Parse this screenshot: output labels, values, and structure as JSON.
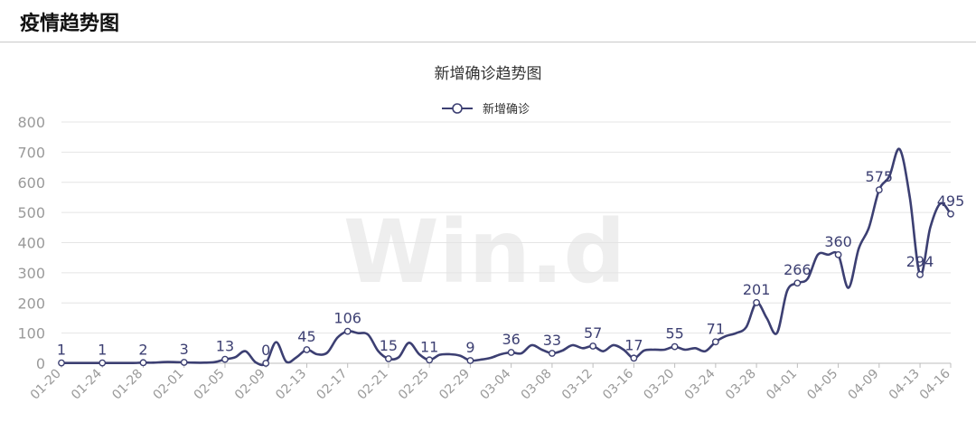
{
  "header": {
    "title": "疫情趋势图"
  },
  "watermark": "Win.d",
  "colors": {
    "line": "#3c3f72",
    "grid": "#e4e4e4",
    "axis": "#bdbdbd",
    "tick": "#9a9a9a"
  },
  "chart_data": {
    "type": "line",
    "title": "新增确诊趋势图",
    "legend": "top-center",
    "grid": true,
    "ylim": [
      0,
      800
    ],
    "yticks": [
      0,
      100,
      200,
      300,
      400,
      500,
      600,
      700,
      800
    ],
    "x_tick_labels": [
      "01-20",
      "01-24",
      "01-28",
      "02-01",
      "02-05",
      "02-09",
      "02-13",
      "02-17",
      "02-21",
      "02-25",
      "02-29",
      "03-04",
      "03-08",
      "03-12",
      "03-16",
      "03-20",
      "03-24",
      "03-28",
      "04-01",
      "04-05",
      "04-09",
      "04-13",
      "04-16"
    ],
    "series": [
      {
        "name": "新增确诊",
        "x": [
          "01-20",
          "01-21",
          "01-22",
          "01-23",
          "01-24",
          "01-25",
          "01-26",
          "01-27",
          "01-28",
          "01-29",
          "01-30",
          "01-31",
          "02-01",
          "02-02",
          "02-03",
          "02-04",
          "02-05",
          "02-06",
          "02-07",
          "02-08",
          "02-09",
          "02-10",
          "02-11",
          "02-12",
          "02-13",
          "02-14",
          "02-15",
          "02-16",
          "02-17",
          "02-18",
          "02-19",
          "02-20",
          "02-21",
          "02-22",
          "02-23",
          "02-24",
          "02-25",
          "02-26",
          "02-27",
          "02-28",
          "02-29",
          "03-01",
          "03-02",
          "03-03",
          "03-04",
          "03-05",
          "03-06",
          "03-07",
          "03-08",
          "03-09",
          "03-10",
          "03-11",
          "03-12",
          "03-13",
          "03-14",
          "03-15",
          "03-16",
          "03-17",
          "03-18",
          "03-19",
          "03-20",
          "03-21",
          "03-22",
          "03-23",
          "03-24",
          "03-25",
          "03-26",
          "03-27",
          "03-28",
          "03-29",
          "03-30",
          "03-31",
          "04-01",
          "04-02",
          "04-03",
          "04-04",
          "04-05",
          "04-06",
          "04-07",
          "04-08",
          "04-09",
          "04-10",
          "04-11",
          "04-12",
          "04-13",
          "04-14",
          "04-15",
          "04-16"
        ],
        "values": [
          1,
          1,
          1,
          1,
          1,
          1,
          1,
          1,
          2,
          2,
          4,
          4,
          3,
          2,
          2,
          4,
          13,
          20,
          40,
          3,
          0,
          70,
          5,
          20,
          45,
          30,
          35,
          85,
          106,
          100,
          95,
          40,
          15,
          20,
          68,
          30,
          11,
          28,
          30,
          25,
          9,
          12,
          18,
          30,
          36,
          33,
          60,
          45,
          33,
          42,
          60,
          50,
          57,
          40,
          60,
          45,
          17,
          42,
          45,
          45,
          55,
          45,
          50,
          40,
          71,
          90,
          100,
          120,
          201,
          150,
          100,
          240,
          266,
          280,
          360,
          360,
          360,
          250,
          380,
          450,
          575,
          620,
          710,
          550,
          294,
          450,
          530,
          495
        ],
        "point_labels": [
          {
            "x": "01-20",
            "label": "1"
          },
          {
            "x": "01-24",
            "label": "1"
          },
          {
            "x": "01-28",
            "label": "2"
          },
          {
            "x": "02-01",
            "label": "3"
          },
          {
            "x": "02-05",
            "label": "13"
          },
          {
            "x": "02-09",
            "label": "0"
          },
          {
            "x": "02-13",
            "label": "45"
          },
          {
            "x": "02-17",
            "label": "106"
          },
          {
            "x": "02-21",
            "label": "15"
          },
          {
            "x": "02-25",
            "label": "11"
          },
          {
            "x": "02-29",
            "label": "9"
          },
          {
            "x": "03-04",
            "label": "36"
          },
          {
            "x": "03-08",
            "label": "33"
          },
          {
            "x": "03-12",
            "label": "57"
          },
          {
            "x": "03-16",
            "label": "17"
          },
          {
            "x": "03-20",
            "label": "55"
          },
          {
            "x": "03-24",
            "label": "71"
          },
          {
            "x": "03-28",
            "label": "201"
          },
          {
            "x": "04-01",
            "label": "266"
          },
          {
            "x": "04-05",
            "label": "360"
          },
          {
            "x": "04-09",
            "label": "575"
          },
          {
            "x": "04-13",
            "label": "294"
          },
          {
            "x": "04-16",
            "label": "495"
          }
        ]
      }
    ]
  }
}
